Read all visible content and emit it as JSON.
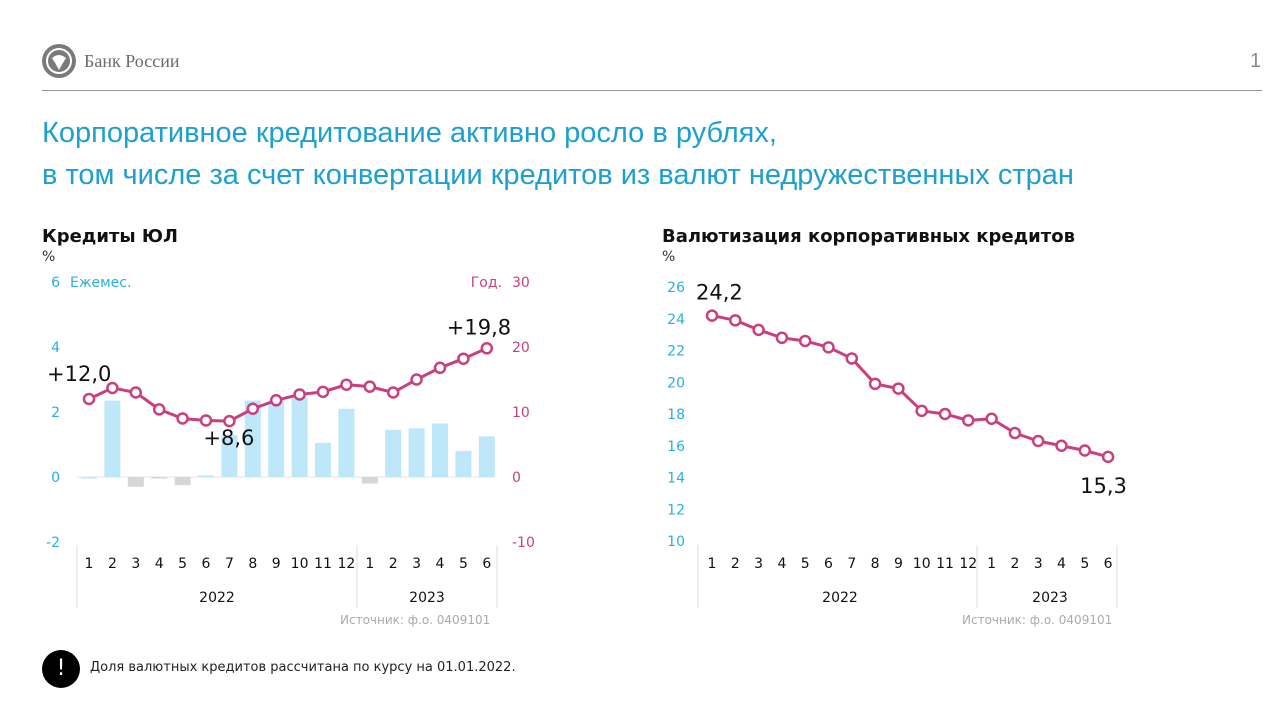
{
  "header": {
    "logo_icon": "bank-of-russia-eagle-icon",
    "logo_text": "Банк России",
    "page_number": "1"
  },
  "title": {
    "line1": "Корпоративное кредитование активно росло в рублях,",
    "line2": "в том числе за счет конвертации кредитов из валют недружественных стран"
  },
  "colors": {
    "title": "#1ea0cf",
    "axis_left": "#29b0e0",
    "axis_right": "#c8407f",
    "line": "#c8407f",
    "bar_pos": "#bfe7fa",
    "bar_neg": "#d6d6d6"
  },
  "note": {
    "icon": "exclamation-icon",
    "text": "Доля валютных кредитов рассчитана по курсу на 01.01.2022."
  },
  "chart_data": [
    {
      "type": "bar+line",
      "title": "Кредиты ЮЛ",
      "unit": "%",
      "left_axis_label": "Ежемес.",
      "right_axis_label": "Год.",
      "left_ylim": [
        -2,
        6
      ],
      "left_ticks": [
        "-2",
        "0",
        "2",
        "4",
        "6"
      ],
      "right_ylim": [
        -10,
        30
      ],
      "right_ticks": [
        "-10",
        "0",
        "10",
        "20",
        "30"
      ],
      "categories": [
        "1",
        "2",
        "3",
        "4",
        "5",
        "6",
        "7",
        "8",
        "9",
        "10",
        "11",
        "12",
        "1",
        "2",
        "3",
        "4",
        "5",
        "6"
      ],
      "years": [
        {
          "label": "2022",
          "months": 12
        },
        {
          "label": "2023",
          "months": 6
        }
      ],
      "series": [
        {
          "name": "Ежемес.",
          "type": "bar",
          "axis": "left",
          "values": [
            0.0,
            2.35,
            -0.3,
            -0.02,
            -0.25,
            0.05,
            1.3,
            2.35,
            2.35,
            2.45,
            1.05,
            2.1,
            -0.2,
            1.45,
            1.5,
            1.65,
            0.8,
            1.25
          ]
        },
        {
          "name": "Год.",
          "type": "line",
          "axis": "right",
          "values": [
            12.0,
            13.7,
            13.0,
            10.4,
            9.0,
            8.7,
            8.6,
            10.5,
            11.8,
            12.7,
            13.1,
            14.2,
            13.9,
            13.0,
            15.0,
            16.8,
            18.2,
            19.8
          ]
        }
      ],
      "annotations": [
        {
          "index": 0,
          "text": "+12,0"
        },
        {
          "index": 6,
          "text": "+8,6"
        },
        {
          "index": 17,
          "text": "+19,8"
        }
      ],
      "source": "Источник: ф.о. 0409101"
    },
    {
      "type": "line",
      "title": "Валютизация корпоративных кредитов",
      "unit": "%",
      "ylim": [
        10,
        26
      ],
      "ticks": [
        "10",
        "12",
        "14",
        "16",
        "18",
        "20",
        "22",
        "24",
        "26"
      ],
      "categories": [
        "1",
        "2",
        "3",
        "4",
        "5",
        "6",
        "7",
        "8",
        "9",
        "10",
        "11",
        "12",
        "1",
        "2",
        "3",
        "4",
        "5",
        "6"
      ],
      "years": [
        {
          "label": "2022",
          "months": 12
        },
        {
          "label": "2023",
          "months": 6
        }
      ],
      "series": [
        {
          "name": "Валютизация",
          "values": [
            24.2,
            23.9,
            23.3,
            22.8,
            22.6,
            22.2,
            21.5,
            19.9,
            19.6,
            18.2,
            18.0,
            17.6,
            17.7,
            16.8,
            16.3,
            16.0,
            15.7,
            15.3
          ]
        }
      ],
      "annotations": [
        {
          "index": 0,
          "text": "24,2"
        },
        {
          "index": 17,
          "text": "15,3"
        }
      ],
      "source": "Источник: ф.о. 0409101"
    }
  ]
}
